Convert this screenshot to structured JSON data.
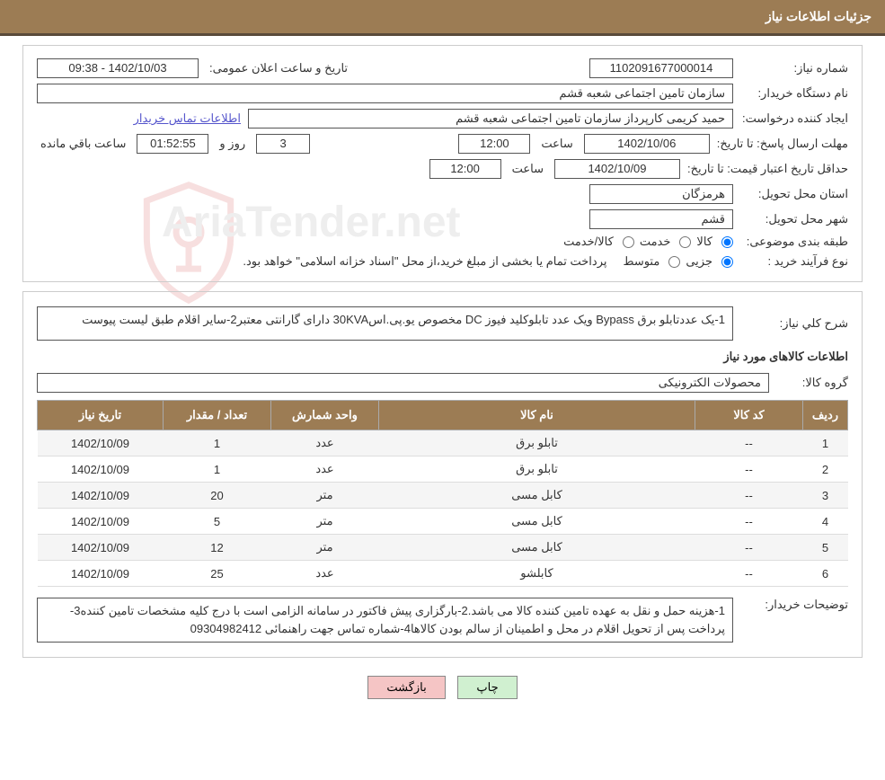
{
  "header": {
    "title": "جزئیات اطلاعات نیاز"
  },
  "fields": {
    "need_number_label": "شماره نیاز:",
    "need_number": "1102091677000014",
    "announce_date_label": "تاریخ و ساعت اعلان عمومی:",
    "announce_date": "1402/10/03 - 09:38",
    "buyer_org_label": "نام دستگاه خریدار:",
    "buyer_org": "سازمان تامین اجتماعی شعبه قشم",
    "requester_label": "ایجاد کننده درخواست:",
    "requester": "حمید کریمی کارپرداز سازمان تامین اجتماعی شعبه قشم",
    "contact_link": "اطلاعات تماس خریدار",
    "reply_deadline_label": "مهلت ارسال پاسخ:  تا تاریخ:",
    "reply_deadline_date": "1402/10/06",
    "time_label": "ساعت",
    "reply_deadline_time": "12:00",
    "days_suffix": "روز و",
    "days_value": "3",
    "countdown": "01:52:55",
    "remaining_label": "ساعت باقي مانده",
    "price_validity_label": "حداقل تاریخ اعتبار قیمت: تا تاریخ:",
    "price_validity_date": "1402/10/09",
    "price_validity_time": "12:00",
    "province_label": "استان محل تحویل:",
    "province": "هرمزگان",
    "city_label": "شهر محل تحویل:",
    "city": "قشم",
    "category_label": "طبقه بندی موضوعی:",
    "cat_goods": "کالا",
    "cat_service": "خدمت",
    "cat_goods_service": "کالا/خدمت",
    "purchase_type_label": "نوع فرآیند خرید :",
    "pt_partial": "جزیی",
    "pt_medium": "متوسط",
    "purchase_note": "پرداخت تمام یا بخشی از مبلغ خرید،از محل \"اسناد خزانه اسلامی\" خواهد بود.",
    "description_label": "شرح کلي نياز:",
    "description": "1-یک عددتابلو برق Bypass ویک عدد تابلوکلید فیوز DC مخصوص یو.پی.اس30KVA دارای گارانتی معتبر2-سایر اقلام طبق لیست پیوست",
    "items_title": "اطلاعات کالاهای مورد نیاز",
    "group_label": "گروه کالا:",
    "group_value": "محصولات الکترونیکی",
    "buyer_notes_label": "توضیحات خریدار:",
    "buyer_notes": "1-هزینه حمل و نقل به عهده تامین کننده کالا می باشد.2-بارگزاری پیش فاکتور در سامانه الزامی است با درج کلیه مشخصات تامین کننده3-پرداخت پس از تحویل اقلام در محل و اطمینان از سالم بودن کالاها4-شماره تماس جهت راهنمائی 09304982412"
  },
  "table": {
    "headers": {
      "row": "ردیف",
      "code": "کد کالا",
      "name": "نام کالا",
      "unit": "واحد شمارش",
      "qty": "تعداد / مقدار",
      "date": "تاریخ نیاز"
    },
    "rows": [
      {
        "row": "1",
        "code": "--",
        "name": "تابلو برق",
        "unit": "عدد",
        "qty": "1",
        "date": "1402/10/09"
      },
      {
        "row": "2",
        "code": "--",
        "name": "تابلو برق",
        "unit": "عدد",
        "qty": "1",
        "date": "1402/10/09"
      },
      {
        "row": "3",
        "code": "--",
        "name": "کابل مسی",
        "unit": "متر",
        "qty": "20",
        "date": "1402/10/09"
      },
      {
        "row": "4",
        "code": "--",
        "name": "کابل مسی",
        "unit": "متر",
        "qty": "5",
        "date": "1402/10/09"
      },
      {
        "row": "5",
        "code": "--",
        "name": "کابل مسی",
        "unit": "متر",
        "qty": "12",
        "date": "1402/10/09"
      },
      {
        "row": "6",
        "code": "--",
        "name": "کابلشو",
        "unit": "عدد",
        "qty": "25",
        "date": "1402/10/09"
      }
    ]
  },
  "buttons": {
    "print": "چاپ",
    "back": "بازگشت"
  },
  "watermark": "AriaTender.net",
  "colors": {
    "header_bg": "#9c7c54",
    "header_text": "#ffffff",
    "border": "#cccccc",
    "input_border": "#555555",
    "link": "#5555cc",
    "row_odd": "#f5f5f5",
    "row_even": "#ffffff",
    "btn_print": "#d0f0d0",
    "btn_back": "#f5c5c5"
  }
}
